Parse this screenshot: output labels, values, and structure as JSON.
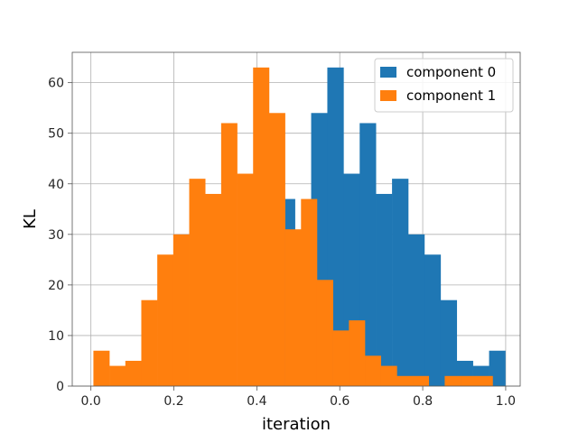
{
  "chart_data": {
    "type": "bar",
    "title": "",
    "xlabel": "iteration",
    "ylabel": "KL",
    "xlim": [
      -0.045,
      1.035
    ],
    "ylim": [
      0,
      66
    ],
    "grid": true,
    "legend_position": "top-right",
    "x_ticks": [
      0.0,
      0.2,
      0.4,
      0.6,
      0.8,
      1.0
    ],
    "x_tick_labels": [
      "0.0",
      "0.2",
      "0.4",
      "0.6",
      "0.8",
      "1.0"
    ],
    "y_ticks": [
      0,
      10,
      20,
      30,
      40,
      50,
      60
    ],
    "y_tick_labels": [
      "0",
      "10",
      "20",
      "30",
      "40",
      "50",
      "60"
    ],
    "series": [
      {
        "name": "component 0",
        "color": "#1f77b4",
        "bin_edges": [
          0.453,
          0.492,
          0.531,
          0.57,
          0.609,
          0.648,
          0.687,
          0.726,
          0.765,
          0.804,
          0.843,
          0.882,
          0.921,
          0.96,
          0.999
        ],
        "values": [
          37,
          30,
          54,
          63,
          42,
          52,
          38,
          41,
          30,
          26,
          17,
          5,
          4,
          7
        ]
      },
      {
        "name": "component 1",
        "color": "#ff7f0e",
        "bin_edges": [
          0.006,
          0.0445,
          0.083,
          0.1215,
          0.16,
          0.1985,
          0.237,
          0.2755,
          0.314,
          0.3525,
          0.391,
          0.4295,
          0.468,
          0.5065,
          0.545,
          0.5835,
          0.622,
          0.6605,
          0.699,
          0.7375,
          0.776,
          0.8145,
          0.853,
          0.8915,
          0.93,
          0.9685
        ],
        "values": [
          7,
          4,
          5,
          17,
          26,
          30,
          41,
          38,
          52,
          42,
          63,
          54,
          31,
          37,
          21,
          11,
          13,
          6,
          4,
          2,
          2,
          0,
          2,
          2,
          2
        ]
      }
    ]
  }
}
